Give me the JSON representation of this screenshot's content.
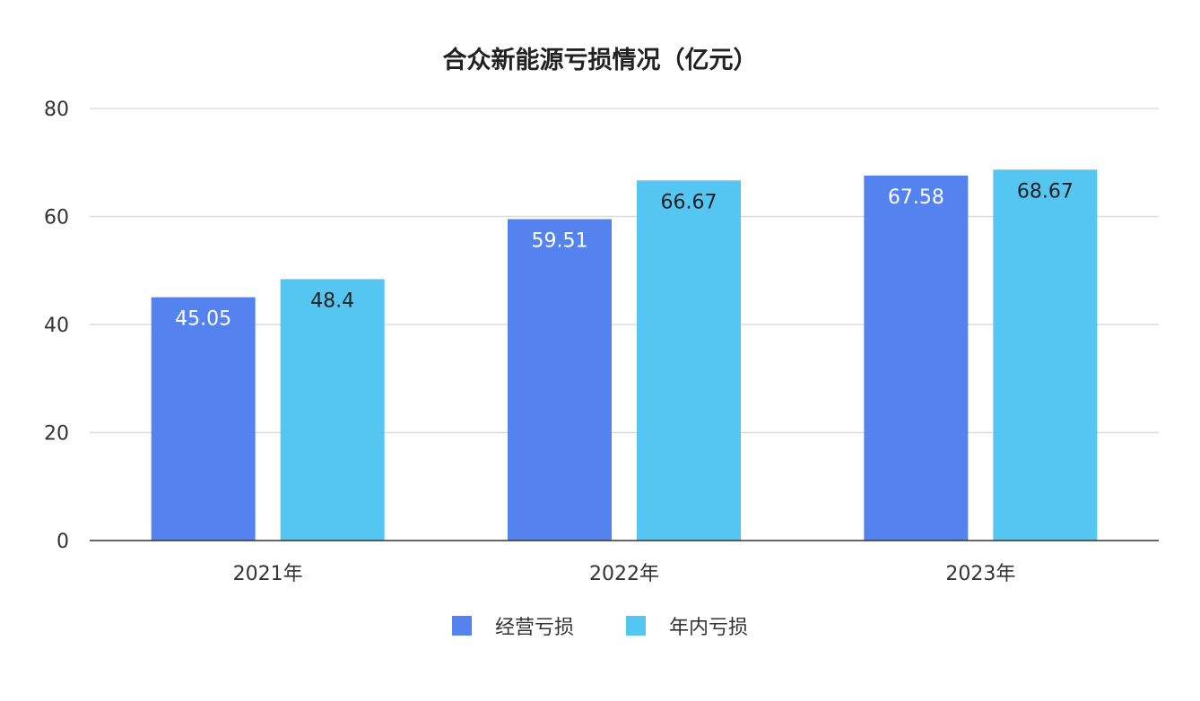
{
  "chart_data": {
    "type": "bar",
    "title": "合众新能源亏损情况（亿元）",
    "categories": [
      "2021年",
      "2022年",
      "2023年"
    ],
    "series": [
      {
        "name": "经营亏损",
        "values": [
          45.05,
          59.51,
          67.58
        ],
        "color": "#5483f0",
        "label_color": "#ffffff"
      },
      {
        "name": "年内亏损",
        "values": [
          48.4,
          66.67,
          68.67
        ],
        "color": "#55c6f2",
        "label_color": "#222222"
      }
    ],
    "value_labels": [
      [
        "45.05",
        "59.51",
        "67.58"
      ],
      [
        "48.4",
        "66.67",
        "68.67"
      ]
    ],
    "ylim": [
      0,
      80
    ],
    "yticks": [
      0,
      20,
      40,
      60,
      80
    ],
    "grid": true,
    "legend_position": "bottom"
  }
}
